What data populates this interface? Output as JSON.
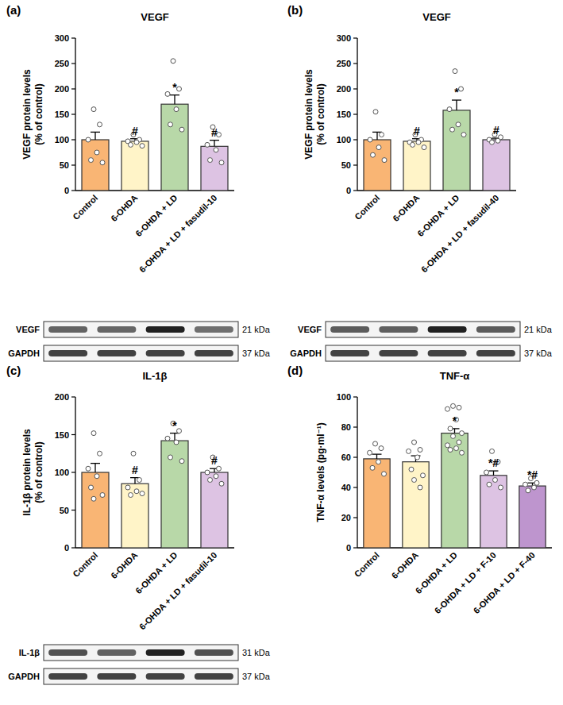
{
  "chart_data": [
    {
      "type": "bar",
      "panel_label": "(a)",
      "title": "VEGF",
      "y_label": [
        "VEGF protein levels",
        "(% of control)"
      ],
      "categories": [
        "Control",
        "6-OHDA",
        "6-OHDA + LD",
        "6-OHDA + LD + fasudil-10"
      ],
      "values": [
        100,
        97,
        170,
        87
      ],
      "errors": [
        15,
        5,
        18,
        12
      ],
      "points": [
        [
          160,
          130,
          100,
          75,
          60,
          55
        ],
        [
          110,
          100,
          97,
          95,
          90,
          88
        ],
        [
          255,
          200,
          190,
          160,
          130,
          120
        ],
        [
          125,
          110,
          90,
          80,
          60,
          55
        ]
      ],
      "significance": [
        null,
        "#",
        "*",
        "#"
      ],
      "colors": [
        "#f9b574",
        "#fff4c8",
        "#b8d8a8",
        "#ddc3e3"
      ],
      "ylim": [
        0,
        300
      ],
      "yticks": [
        0,
        50,
        100,
        150,
        200,
        250,
        300
      ],
      "blot": {
        "rows": [
          {
            "label": "VEGF",
            "size": "21 kDa"
          },
          {
            "label": "GAPDH",
            "size": "37 kDa"
          }
        ]
      }
    },
    {
      "type": "bar",
      "panel_label": "(b)",
      "title": "VEGF",
      "y_label": [
        "VEGF protein levels",
        "(% of control)"
      ],
      "categories": [
        "Control",
        "6-OHDA",
        "6-OHDA + LD",
        "6-OHDA + LD + fasudil-40"
      ],
      "values": [
        100,
        97,
        158,
        100
      ],
      "errors": [
        15,
        5,
        20,
        3
      ],
      "points": [
        [
          155,
          110,
          100,
          85,
          70,
          60
        ],
        [
          110,
          100,
          95,
          95,
          90,
          85
        ],
        [
          235,
          200,
          160,
          130,
          120,
          110
        ],
        [
          110,
          105,
          100,
          98,
          95
        ]
      ],
      "significance": [
        null,
        "#",
        "*",
        "#"
      ],
      "colors": [
        "#f9b574",
        "#fff4c8",
        "#b8d8a8",
        "#ddc3e3"
      ],
      "ylim": [
        0,
        300
      ],
      "yticks": [
        0,
        50,
        100,
        150,
        200,
        250,
        300
      ],
      "blot": {
        "rows": [
          {
            "label": "VEGF",
            "size": "21 kDa"
          },
          {
            "label": "GAPDH",
            "size": "37 kDa"
          }
        ]
      }
    },
    {
      "type": "bar",
      "panel_label": "(c)",
      "title": "IL-1β",
      "y_label": [
        "IL-1β protein levels",
        "(% of control)"
      ],
      "categories": [
        "Control",
        "6-OHDA",
        "6-OHDA + LD",
        "6-OHDA + LD + fasudil-10"
      ],
      "values": [
        100,
        85,
        142,
        100
      ],
      "errors": [
        12,
        8,
        10,
        5
      ],
      "points": [
        [
          152,
          125,
          105,
          95,
          80,
          70,
          65
        ],
        [
          125,
          90,
          80,
          75,
          70,
          72
        ],
        [
          165,
          155,
          145,
          140,
          120,
          115
        ],
        [
          120,
          105,
          100,
          95,
          90,
          85
        ]
      ],
      "significance": [
        null,
        "#",
        "*",
        "#"
      ],
      "colors": [
        "#f9b574",
        "#fff4c8",
        "#b8d8a8",
        "#ddc3e3"
      ],
      "ylim": [
        0,
        200
      ],
      "yticks": [
        0,
        50,
        100,
        150,
        200
      ],
      "blot": {
        "rows": [
          {
            "label": "IL-1β",
            "size": "31 kDa"
          },
          {
            "label": "GAPDH",
            "size": "37 kDa"
          }
        ]
      }
    },
    {
      "type": "bar",
      "panel_label": "(d)",
      "title": "TNF-α",
      "y_label": [
        "TNF-α levels (pg·ml⁻¹)"
      ],
      "categories": [
        "Control",
        "6-OHDA",
        "6-OHDA + LD",
        "6-OHDA + LD + F-10",
        "6-OHDA + LD + F-40"
      ],
      "values": [
        59,
        57,
        76,
        48,
        41
      ],
      "errors": [
        3,
        4,
        3,
        3,
        2
      ],
      "points": [
        [
          69,
          66,
          63,
          57,
          53,
          49
        ],
        [
          70,
          65,
          64,
          60,
          52,
          48,
          45,
          40
        ],
        [
          94,
          93,
          92,
          85,
          79,
          76,
          74,
          70,
          68,
          66,
          65,
          63
        ],
        [
          64,
          57,
          50,
          45,
          42,
          40
        ],
        [
          46,
          43,
          42,
          40,
          38
        ]
      ],
      "significance": [
        null,
        null,
        "*",
        "*#",
        "*#"
      ],
      "colors": [
        "#f9b574",
        "#fff4c8",
        "#b8d8a8",
        "#ddc3e3",
        "#be95ce"
      ],
      "ylim": [
        0,
        100
      ],
      "yticks": [
        0,
        20,
        40,
        60,
        80,
        100
      ]
    }
  ]
}
